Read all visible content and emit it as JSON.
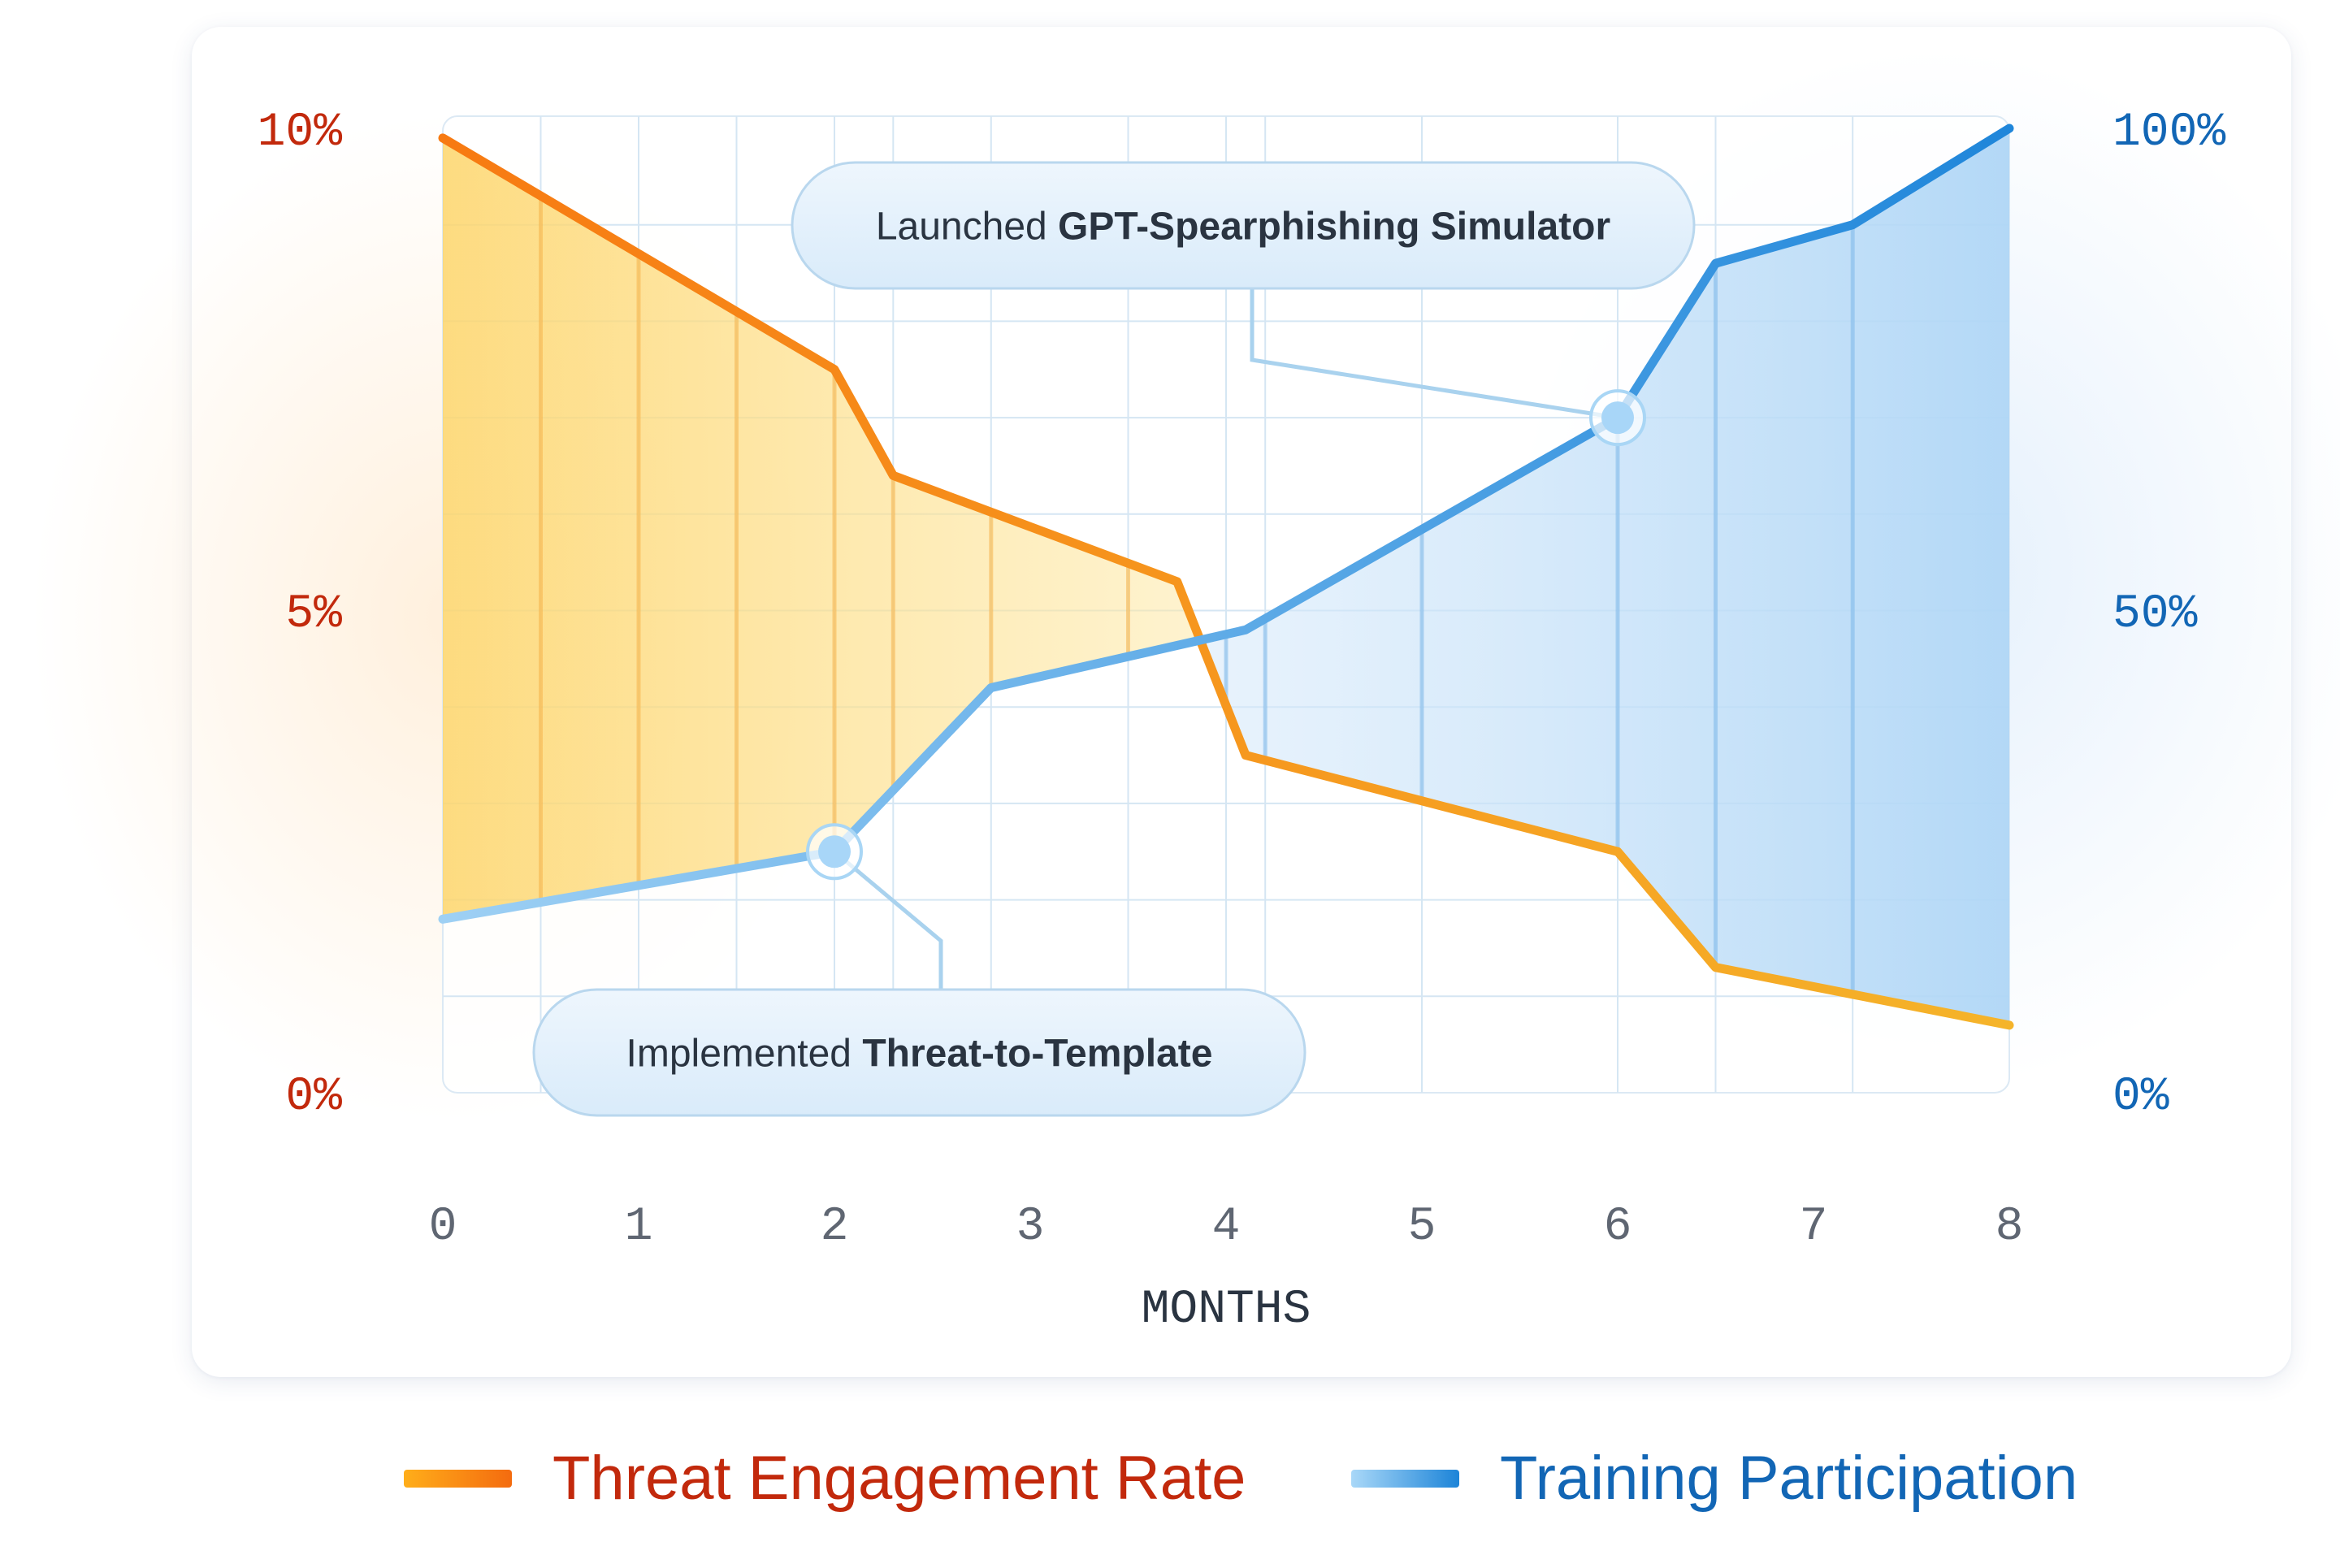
{
  "chart_data": {
    "type": "line",
    "x": [
      0,
      0.5,
      1,
      1.5,
      2,
      2.3,
      2.8,
      3.5,
      4,
      4.2,
      5,
      6,
      6.5,
      7.2,
      8
    ],
    "x_ticks": [
      "0",
      "1",
      "2",
      "3",
      "4",
      "5",
      "6",
      "7",
      "8"
    ],
    "xlim": [
      0,
      8
    ],
    "xlabel": "MONTHS",
    "series": [
      {
        "name": "Threat Engagement Rate",
        "axis": "left",
        "ylim": [
          0,
          10
        ],
        "y_ticks": [
          "10%",
          "5%",
          "0%"
        ],
        "color": "#F7931E",
        "points": [
          [
            0,
            9.9
          ],
          [
            2,
            7.5
          ],
          [
            2.3,
            6.4
          ],
          [
            3.75,
            5.3
          ],
          [
            4.1,
            3.5
          ],
          [
            6,
            2.5
          ],
          [
            6.5,
            1.3
          ],
          [
            8,
            0.7
          ]
        ]
      },
      {
        "name": "Training Participation",
        "axis": "right",
        "ylim": [
          0,
          100
        ],
        "y_ticks": [
          "100%",
          "50%",
          "0%"
        ],
        "color": "#2F8FDB",
        "points": [
          [
            0,
            18
          ],
          [
            2,
            25
          ],
          [
            2.8,
            42
          ],
          [
            4.1,
            48
          ],
          [
            6,
            70
          ],
          [
            6.5,
            86
          ],
          [
            7.2,
            90
          ],
          [
            8,
            100
          ]
        ]
      }
    ],
    "annotations": [
      {
        "prefix": "Launched ",
        "bold": "GPT-Spearphishing Simulator",
        "x": 6,
        "series": "Training Participation"
      },
      {
        "prefix": "Implemented ",
        "bold": "Threat-to-Template",
        "x": 2,
        "series": "Training Participation"
      }
    ],
    "grid": true,
    "legend_position": "bottom"
  }
}
